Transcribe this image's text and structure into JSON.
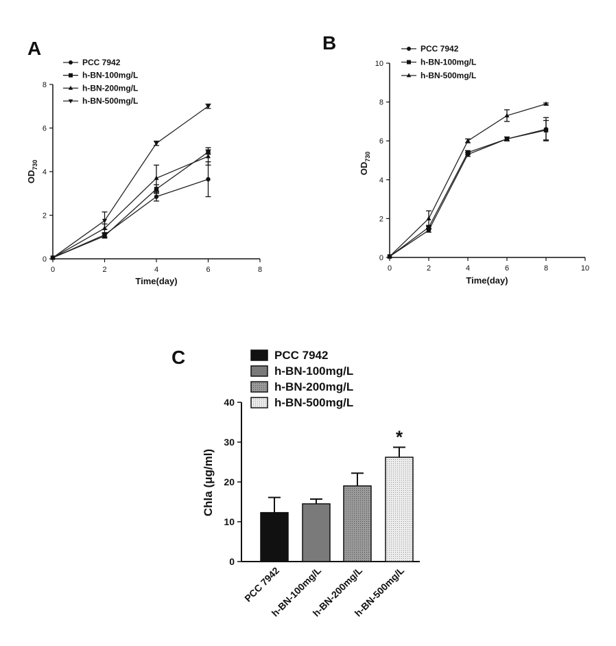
{
  "chart_data": [
    {
      "panel": "A",
      "type": "line",
      "xlabel": "Time(day)",
      "ylabel": "OD",
      "ylabel_sub": "730",
      "xlim": [
        0,
        8
      ],
      "ylim": [
        0,
        8
      ],
      "xticks": [
        0,
        2,
        4,
        6,
        8
      ],
      "yticks": [
        0,
        2,
        4,
        6,
        8
      ],
      "x": [
        0,
        2,
        4,
        6
      ],
      "legend_position": "top-left",
      "series": [
        {
          "name": "PCC 7942",
          "marker": "circle",
          "values": [
            0.05,
            1.1,
            2.85,
            3.65
          ],
          "errors": [
            0,
            0.1,
            0.2,
            0.8
          ]
        },
        {
          "name": "h-BN-100mg/L",
          "marker": "square",
          "values": [
            0.05,
            1.05,
            3.2,
            4.9
          ],
          "errors": [
            0,
            0.1,
            0.2,
            0.1
          ]
        },
        {
          "name": "h-BN-200mg/L",
          "marker": "triangle-up",
          "values": [
            0.05,
            1.4,
            3.7,
            4.7
          ],
          "errors": [
            0,
            0.2,
            0.6,
            0.4
          ]
        },
        {
          "name": "h-BN-500mg/L",
          "marker": "triangle-down",
          "values": [
            0.05,
            1.75,
            5.3,
            7.0
          ],
          "errors": [
            0,
            0.4,
            0.1,
            0.1
          ]
        }
      ]
    },
    {
      "panel": "B",
      "type": "line",
      "xlabel": "Time(day)",
      "ylabel": "OD",
      "ylabel_sub": "730",
      "xlim": [
        0,
        10
      ],
      "ylim": [
        0,
        10
      ],
      "xticks": [
        0,
        2,
        4,
        6,
        8,
        10
      ],
      "yticks": [
        0,
        2,
        4,
        6,
        8,
        10
      ],
      "x": [
        0,
        2,
        4,
        6,
        8
      ],
      "legend_position": "top-left",
      "series": [
        {
          "name": "PCC 7942",
          "marker": "circle",
          "values": [
            0.05,
            1.4,
            5.3,
            6.1,
            6.6
          ],
          "errors": [
            0,
            0.1,
            0.1,
            0.1,
            0.6
          ]
        },
        {
          "name": "h-BN-100mg/L",
          "marker": "square",
          "values": [
            0.05,
            1.55,
            5.4,
            6.1,
            6.55
          ],
          "errors": [
            0,
            0.1,
            0.1,
            0.1,
            0.5
          ]
        },
        {
          "name": "h-BN-500mg/L",
          "marker": "triangle-up",
          "values": [
            0.05,
            2.0,
            6.0,
            7.3,
            7.9
          ],
          "errors": [
            0,
            0.4,
            0.1,
            0.3,
            0.05
          ]
        }
      ]
    },
    {
      "panel": "C",
      "type": "bar",
      "ylabel": "Chla (μg/ml)",
      "ylim": [
        0,
        40
      ],
      "yticks": [
        0,
        10,
        20,
        30,
        40
      ],
      "categories": [
        "PCC 7942",
        "h-BN-100mg/L",
        "h-BN-200mg/L",
        "h-BN-500mg/L"
      ],
      "values": [
        12.3,
        14.5,
        19.0,
        26.2
      ],
      "errors": [
        3.8,
        1.2,
        3.2,
        2.5
      ],
      "fills": [
        "#111111",
        "#777777",
        "#999999",
        "#e2e2e2"
      ],
      "significance": [
        "",
        "",
        "",
        "*"
      ],
      "legend": [
        "PCC 7942",
        "h-BN-100mg/L",
        "h-BN-200mg/L",
        "h-BN-500mg/L"
      ],
      "legend_position": "top"
    }
  ]
}
